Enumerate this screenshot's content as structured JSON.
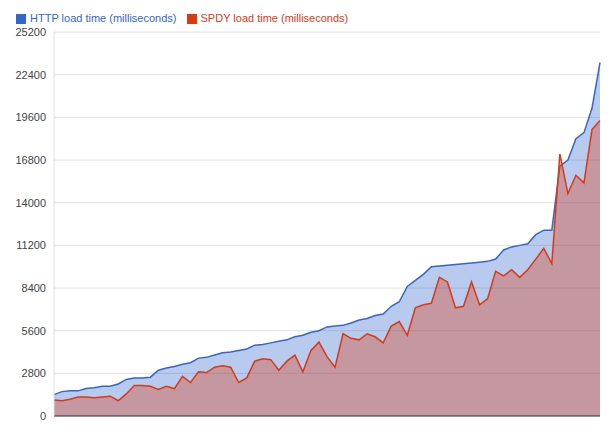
{
  "chart_data": {
    "type": "area",
    "categories": [
      null,
      null,
      null,
      null,
      null,
      null,
      null,
      null,
      null,
      null,
      null,
      null,
      null,
      null,
      null,
      null,
      null,
      null,
      null,
      null,
      null,
      null,
      null,
      null,
      null,
      null,
      null,
      null,
      null,
      null,
      null,
      null,
      null,
      null,
      null,
      null,
      null,
      null,
      null,
      null,
      null,
      null,
      null,
      null,
      null,
      null,
      null,
      null,
      null,
      null,
      null,
      null,
      null,
      null,
      null,
      null,
      null,
      null,
      null,
      null,
      null,
      null,
      null,
      null,
      null,
      null,
      null,
      null,
      null
    ],
    "series": [
      {
        "name": "HTTP load time (milliseconds)",
        "color": "#3366cc",
        "values": [
          1400,
          1600,
          1650,
          1650,
          1800,
          1850,
          1950,
          1950,
          2100,
          2400,
          2500,
          2500,
          2550,
          3000,
          3150,
          3250,
          3400,
          3500,
          3800,
          3850,
          4000,
          4150,
          4200,
          4300,
          4400,
          4650,
          4700,
          4800,
          4900,
          5000,
          5200,
          5300,
          5500,
          5600,
          5850,
          5900,
          5950,
          6100,
          6300,
          6400,
          6600,
          6700,
          7200,
          7500,
          8500,
          8900,
          9300,
          9800,
          9850,
          9900,
          9950,
          10000,
          10050,
          10100,
          10150,
          10300,
          10900,
          11100,
          11200,
          11300,
          11900,
          12200,
          12200,
          16400,
          16800,
          18200,
          18600,
          20200,
          23200
        ]
      },
      {
        "name": "SPDY load time (milliseconds)",
        "color": "#dc3912",
        "values": [
          1050,
          1000,
          1100,
          1250,
          1250,
          1200,
          1250,
          1300,
          1000,
          1450,
          2000,
          2000,
          1950,
          1750,
          1950,
          1800,
          2600,
          2200,
          2900,
          2850,
          3200,
          3300,
          3200,
          2200,
          2500,
          3600,
          3750,
          3700,
          3000,
          3600,
          4000,
          2900,
          4300,
          4850,
          3900,
          3200,
          5400,
          5100,
          5000,
          5400,
          5200,
          4800,
          5900,
          6200,
          5300,
          7100,
          7300,
          7400,
          9100,
          8800,
          7100,
          7200,
          8800,
          7300,
          7700,
          9500,
          9200,
          9600,
          9100,
          9600,
          10300,
          11000,
          10000,
          17200,
          14600,
          15800,
          15300,
          18800,
          19400
        ]
      }
    ],
    "ylim": [
      0,
      25200
    ],
    "yticks": [
      0,
      2800,
      5600,
      8400,
      11200,
      14000,
      16800,
      19600,
      22400,
      25200
    ],
    "grid": true,
    "legend": "top-left",
    "tick_labels": "y"
  }
}
